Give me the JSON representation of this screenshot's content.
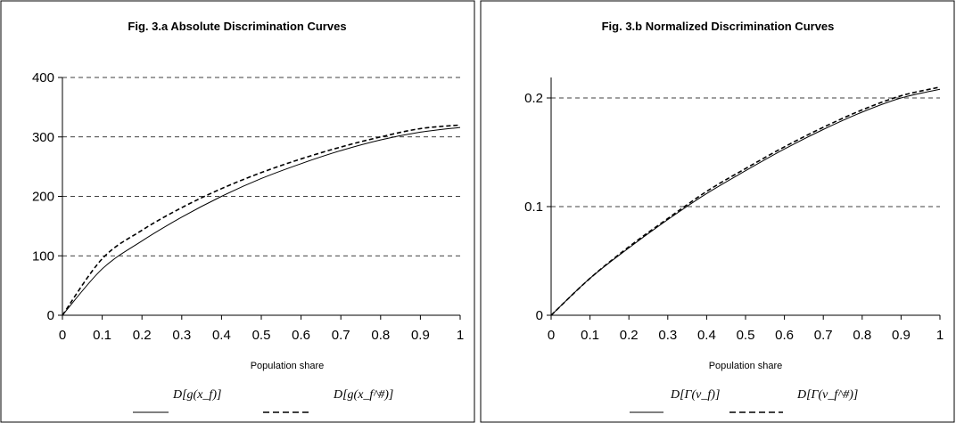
{
  "chart_data": [
    {
      "type": "line",
      "title": "Fig. 3.a Absolute Discrimination Curves",
      "xlabel": "Population share",
      "ylabel": "",
      "xlim": [
        0,
        1
      ],
      "ylim": [
        0,
        400
      ],
      "x_ticks": [
        "0",
        "0.1",
        "0.2",
        "0.3",
        "0.4",
        "0.5",
        "0.6",
        "0.7",
        "0.8",
        "0.9",
        "1"
      ],
      "y_ticks": [
        "0",
        "100",
        "200",
        "300",
        "400"
      ],
      "grid": "horizontal dashed",
      "legend_position": "bottom",
      "x": [
        0,
        0.1,
        0.2,
        0.3,
        0.4,
        0.5,
        0.6,
        0.7,
        0.8,
        0.9,
        1.0
      ],
      "series": [
        {
          "name": "D[g(x_f)]",
          "style": "solid",
          "values": [
            0,
            78,
            125,
            165,
            200,
            230,
            255,
            277,
            295,
            308,
            316
          ]
        },
        {
          "name": "D[g(x_f^#)]",
          "style": "dashed",
          "values": [
            0,
            95,
            143,
            181,
            213,
            240,
            263,
            283,
            300,
            314,
            320
          ]
        }
      ]
    },
    {
      "type": "line",
      "title": "Fig. 3.b Normalized Discrimination Curves",
      "xlabel": "Population share",
      "ylabel": "",
      "xlim": [
        0,
        1
      ],
      "ylim": [
        0,
        0.22
      ],
      "x_ticks": [
        "0",
        "0.1",
        "0.2",
        "0.3",
        "0.4",
        "0.5",
        "0.6",
        "0.7",
        "0.8",
        "0.9",
        "1"
      ],
      "y_ticks": [
        "0",
        "0.1",
        "0.2"
      ],
      "grid": "horizontal dashed",
      "legend_position": "bottom",
      "x": [
        0,
        0.1,
        0.2,
        0.3,
        0.4,
        0.5,
        0.6,
        0.7,
        0.8,
        0.9,
        1.0
      ],
      "series": [
        {
          "name": "D[Γ(v_f)]",
          "style": "solid",
          "values": [
            0,
            0.034,
            0.062,
            0.088,
            0.112,
            0.133,
            0.153,
            0.171,
            0.187,
            0.2,
            0.208
          ]
        },
        {
          "name": "D[Γ(v_f^#)]",
          "style": "dashed",
          "values": [
            0,
            0.034,
            0.063,
            0.089,
            0.114,
            0.135,
            0.155,
            0.173,
            0.189,
            0.202,
            0.21
          ]
        }
      ]
    }
  ]
}
